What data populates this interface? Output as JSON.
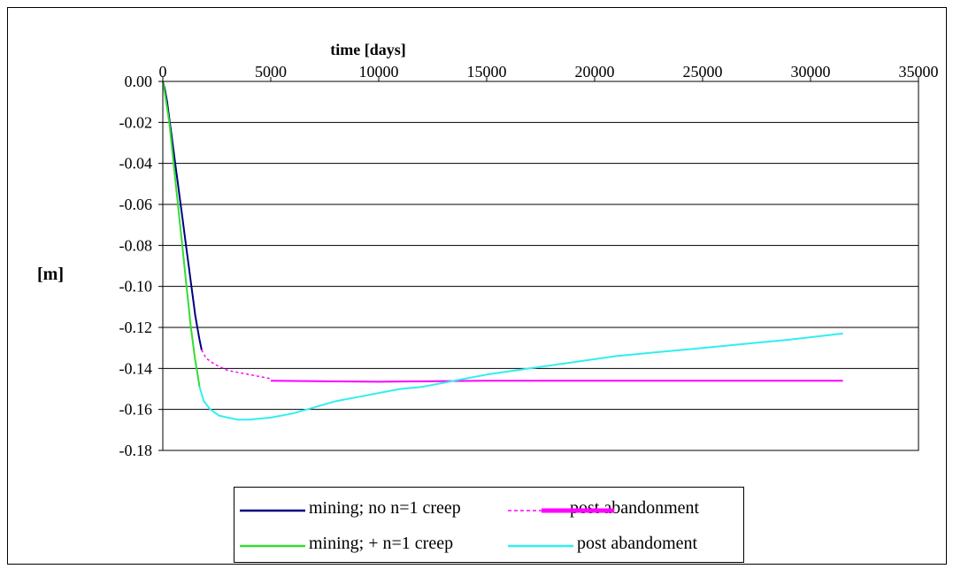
{
  "chart_data": {
    "type": "line",
    "title": "",
    "xlabel": "time [days]",
    "ylabel": "[m]",
    "x_axis_position": "top",
    "xlim": [
      0,
      35000
    ],
    "ylim": [
      -0.18,
      0.0
    ],
    "x_ticks": [
      0,
      5000,
      10000,
      15000,
      20000,
      25000,
      30000,
      35000
    ],
    "x_tick_labels": [
      "0",
      "5000",
      "10000",
      "15000",
      "20000",
      "25000",
      "30000",
      "35000"
    ],
    "y_ticks": [
      0.0,
      -0.02,
      -0.04,
      -0.06,
      -0.08,
      -0.1,
      -0.12,
      -0.14,
      -0.16,
      -0.18
    ],
    "y_tick_labels": [
      "0.00",
      "-0.02",
      "-0.04",
      "-0.06",
      "-0.08",
      "-0.10",
      "-0.12",
      "-0.14",
      "-0.16",
      "-0.18"
    ],
    "grid": "horizontal",
    "legend_position": "bottom",
    "series": [
      {
        "name": "mining; no n=1 creep",
        "color": "#000080",
        "style": "solid",
        "points": [
          [
            0,
            0
          ],
          [
            100,
            -0.004
          ],
          [
            200,
            -0.01
          ],
          [
            300,
            -0.018
          ],
          [
            400,
            -0.026
          ],
          [
            500,
            -0.034
          ],
          [
            600,
            -0.042
          ],
          [
            700,
            -0.05
          ],
          [
            800,
            -0.058
          ],
          [
            900,
            -0.066
          ],
          [
            1000,
            -0.074
          ],
          [
            1100,
            -0.082
          ],
          [
            1200,
            -0.09
          ],
          [
            1300,
            -0.098
          ],
          [
            1400,
            -0.106
          ],
          [
            1500,
            -0.114
          ],
          [
            1600,
            -0.12
          ],
          [
            1700,
            -0.126
          ],
          [
            1800,
            -0.131
          ]
        ]
      },
      {
        "name": "mining; + n=1 creep",
        "color": "#33dd33",
        "style": "solid",
        "points": [
          [
            0,
            0
          ],
          [
            100,
            -0.006
          ],
          [
            200,
            -0.013
          ],
          [
            300,
            -0.02
          ],
          [
            400,
            -0.03
          ],
          [
            500,
            -0.04
          ],
          [
            600,
            -0.05
          ],
          [
            700,
            -0.06
          ],
          [
            800,
            -0.07
          ],
          [
            900,
            -0.08
          ],
          [
            1000,
            -0.09
          ],
          [
            1100,
            -0.1
          ],
          [
            1200,
            -0.11
          ],
          [
            1300,
            -0.12
          ],
          [
            1400,
            -0.128
          ],
          [
            1500,
            -0.136
          ],
          [
            1600,
            -0.142
          ],
          [
            1700,
            -0.149
          ]
        ]
      },
      {
        "name": "post abandonment",
        "color": "#ff00ff",
        "style": "dashed",
        "points": [
          [
            1800,
            -0.131
          ],
          [
            2000,
            -0.135
          ],
          [
            2400,
            -0.138
          ],
          [
            3000,
            -0.141
          ],
          [
            4000,
            -0.143
          ],
          [
            5000,
            -0.145
          ]
        ]
      },
      {
        "name": "post abandonment",
        "color": "#ff00ff",
        "style": "solid",
        "points": [
          [
            5000,
            -0.146
          ],
          [
            10000,
            -0.1465
          ],
          [
            15000,
            -0.146
          ],
          [
            20000,
            -0.146
          ],
          [
            25000,
            -0.146
          ],
          [
            30000,
            -0.146
          ],
          [
            31500,
            -0.146
          ]
        ]
      },
      {
        "name": "post abandoment",
        "color": "#33eeee",
        "style": "solid",
        "points": [
          [
            1700,
            -0.149
          ],
          [
            1900,
            -0.156
          ],
          [
            2200,
            -0.16
          ],
          [
            2600,
            -0.163
          ],
          [
            3000,
            -0.164
          ],
          [
            3500,
            -0.165
          ],
          [
            4000,
            -0.165
          ],
          [
            5000,
            -0.164
          ],
          [
            6000,
            -0.162
          ],
          [
            7000,
            -0.159
          ],
          [
            8000,
            -0.156
          ],
          [
            9000,
            -0.154
          ],
          [
            10000,
            -0.152
          ],
          [
            11000,
            -0.15
          ],
          [
            12000,
            -0.149
          ],
          [
            13000,
            -0.147
          ],
          [
            14000,
            -0.145
          ],
          [
            15000,
            -0.143
          ],
          [
            17000,
            -0.14
          ],
          [
            19000,
            -0.137
          ],
          [
            21000,
            -0.134
          ],
          [
            23000,
            -0.132
          ],
          [
            25000,
            -0.13
          ],
          [
            27000,
            -0.128
          ],
          [
            29000,
            -0.126
          ],
          [
            31500,
            -0.123
          ]
        ]
      }
    ]
  },
  "legend": {
    "items": [
      {
        "label": "mining; no n=1 creep",
        "color": "#000080",
        "style": "solid"
      },
      {
        "label": "post abandonment",
        "color": "#ff00ff",
        "style": "dashed-thick"
      },
      {
        "label": "mining; + n=1 creep",
        "color": "#33dd33",
        "style": "solid"
      },
      {
        "label": "post abandoment",
        "color": "#33eeee",
        "style": "solid"
      }
    ]
  }
}
